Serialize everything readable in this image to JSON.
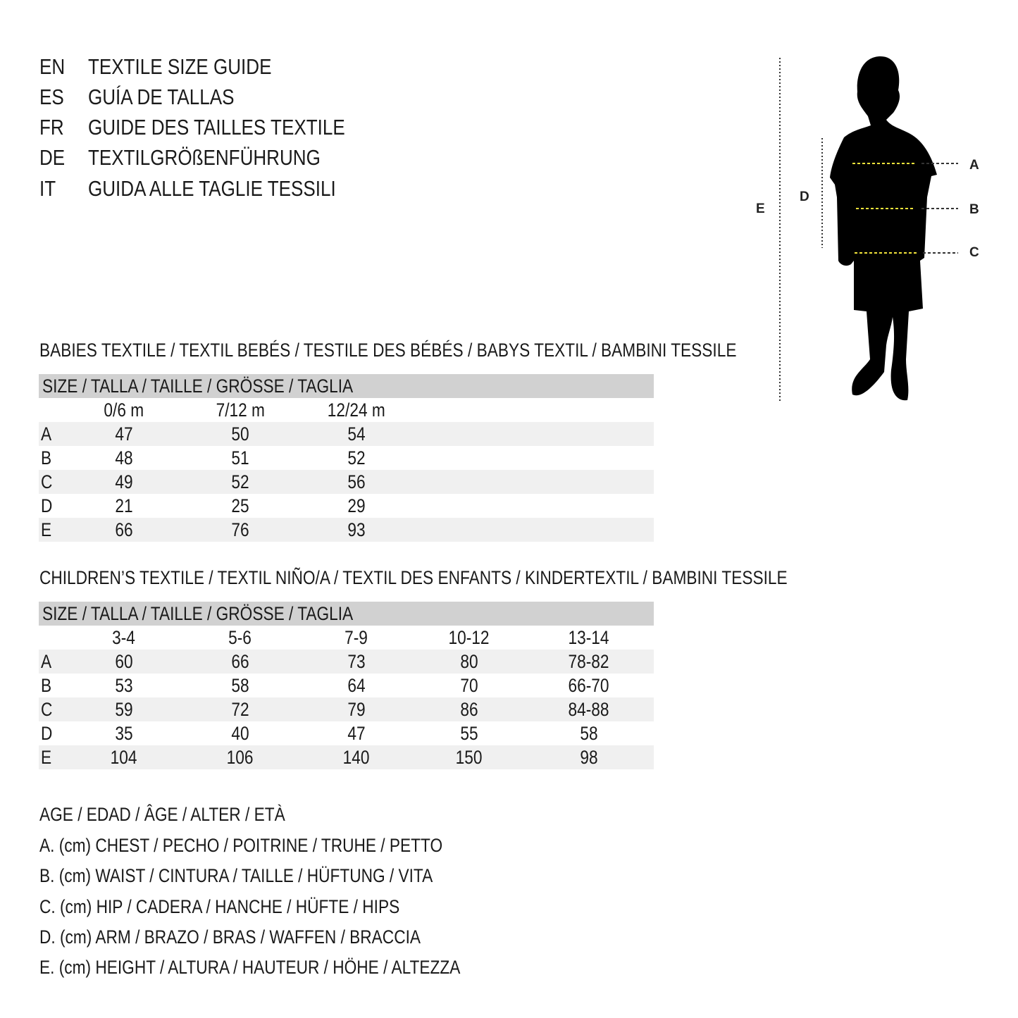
{
  "titles": [
    {
      "code": "EN",
      "text": "TEXTILE SIZE GUIDE"
    },
    {
      "code": "ES",
      "text": "GUÍA DE TALLAS"
    },
    {
      "code": "FR",
      "text": "GUIDE DES TAILLES TEXTILE"
    },
    {
      "code": "DE",
      "text": "TEXTILGRÖßENFÜHRUNG"
    },
    {
      "code": "IT",
      "text": "GUIDA ALLE TAGLIE TESSILI"
    }
  ],
  "figure": {
    "labels": {
      "a": "A",
      "b": "B",
      "c": "C",
      "d": "D",
      "e": "E"
    },
    "measure_line_color": "#f2e33a"
  },
  "babies": {
    "title": "BABIES TEXTILE / TEXTIL BEBÉS / TESTILE DES BÉBÉS / BABYS TEXTIL / BAMBINI TESSILE",
    "header": "SIZE / TALLA / TAILLE / GRÖSSE / TAGLIA",
    "columns": [
      "0/6 m",
      "7/12 m",
      "12/24 m"
    ],
    "rows": [
      {
        "label": "A",
        "values": [
          "47",
          "50",
          "54"
        ]
      },
      {
        "label": "B",
        "values": [
          "48",
          "51",
          "52"
        ]
      },
      {
        "label": "C",
        "values": [
          "49",
          "52",
          "56"
        ]
      },
      {
        "label": "D",
        "values": [
          "21",
          "25",
          "29"
        ]
      },
      {
        "label": "E",
        "values": [
          "66",
          "76",
          "93"
        ]
      }
    ]
  },
  "children": {
    "title": "CHILDREN’S TEXTILE / TEXTIL NIÑO/A / TEXTIL DES ENFANTS / KINDERTEXTIL / BAMBINI TESSILE",
    "header": "SIZE / TALLA / TAILLE / GRÖSSE / TAGLIA",
    "columns": [
      "3-4",
      "5-6",
      "7-9",
      "10-12",
      "13-14"
    ],
    "rows": [
      {
        "label": "A",
        "values": [
          "60",
          "66",
          "73",
          "80",
          "78-82"
        ]
      },
      {
        "label": "B",
        "values": [
          "53",
          "58",
          "64",
          "70",
          "66-70"
        ]
      },
      {
        "label": "C",
        "values": [
          "59",
          "72",
          "79",
          "86",
          "84-88"
        ]
      },
      {
        "label": "D",
        "values": [
          "35",
          "40",
          "47",
          "55",
          "58"
        ]
      },
      {
        "label": "E",
        "values": [
          "104",
          "106",
          "140",
          "150",
          "98"
        ]
      }
    ]
  },
  "legend": [
    "AGE / EDAD / ÂGE / ALTER / ETÀ",
    "A. (cm) CHEST / PECHO / POITRINE / TRUHE / PETTO",
    "B. (cm) WAIST / CINTURA / TAILLE / HÜFTUNG / VITA",
    "C. (cm) HIP / CADERA / HANCHE / HÜFTE / HIPS",
    "D. (cm) ARM / BRAZO / BRAS / WAFFEN / BRACCIA",
    "E. (cm) HEIGHT / ALTURA / HAUTEUR / HÖHE / ALTEZZA"
  ]
}
